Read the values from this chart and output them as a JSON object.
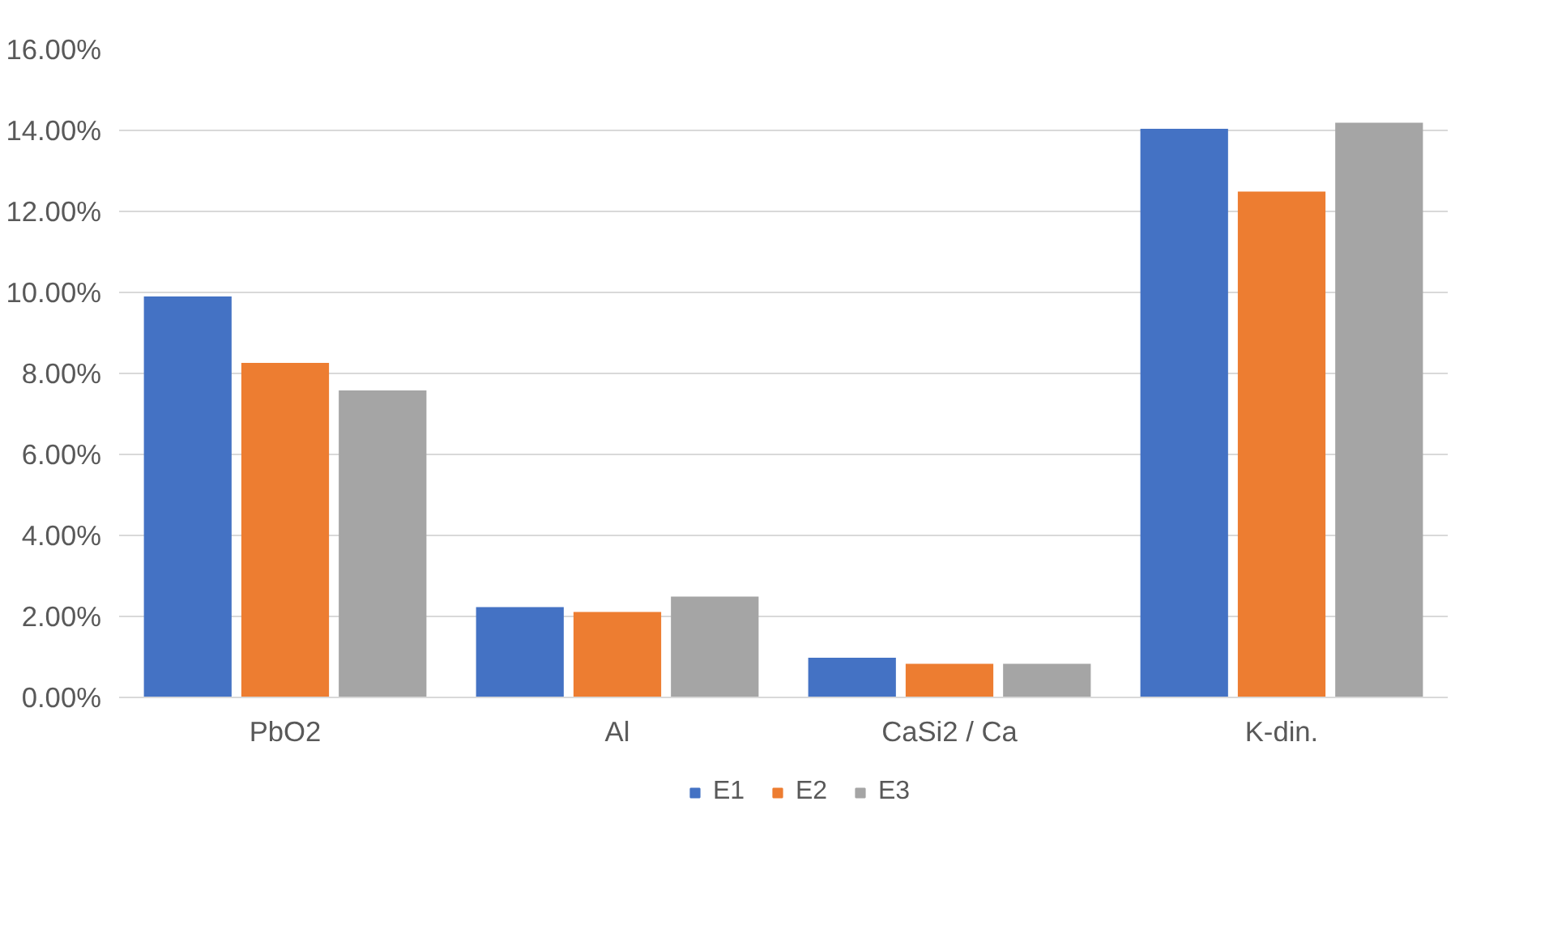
{
  "chart_data": {
    "type": "bar",
    "categories": [
      "PbO2",
      "Al",
      "CaSi2 / Ca",
      "K-din."
    ],
    "series": [
      {
        "name": "E1",
        "color": "#4472c4",
        "values": [
          9.9,
          2.23,
          0.98,
          14.04
        ]
      },
      {
        "name": "E2",
        "color": "#ed7d31",
        "values": [
          8.26,
          2.11,
          0.83,
          12.49
        ]
      },
      {
        "name": "E3",
        "color": "#a5a5a5",
        "values": [
          7.58,
          2.49,
          0.83,
          14.19
        ]
      }
    ],
    "ylim": [
      0,
      16
    ],
    "yticks": [
      {
        "value": 0,
        "label": "0.00%"
      },
      {
        "value": 2,
        "label": "2.00%"
      },
      {
        "value": 4,
        "label": "4.00%"
      },
      {
        "value": 6,
        "label": "6.00%"
      },
      {
        "value": 8,
        "label": "8.00%"
      },
      {
        "value": 10,
        "label": "10.00%"
      },
      {
        "value": 12,
        "label": "12.00%"
      },
      {
        "value": 14,
        "label": "14.00%"
      },
      {
        "value": 16,
        "label": "16.00%"
      }
    ],
    "grid": "y",
    "legend": "bottom"
  }
}
